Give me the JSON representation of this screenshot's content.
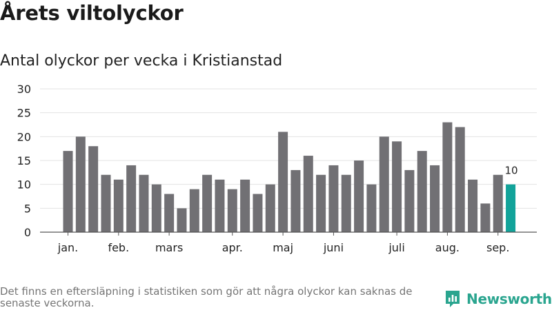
{
  "header": {
    "title": "Årets viltolyckor",
    "subtitle": "Antal olyckor per vecka i Kristianstad"
  },
  "footer": {
    "note": "Det finns en eftersläpning i statistiken som gör att några olyckor kan saknas de senaste veckorna.",
    "brand": "Newsworthy"
  },
  "colors": {
    "bar": "#717074",
    "highlight": "#12a39a",
    "grid": "#e3e3e3",
    "axis": "#555555",
    "brand": "#2aa58f"
  },
  "chart_data": {
    "type": "bar",
    "title": "Antal olyckor per vecka i Kristianstad",
    "xlabel": "",
    "ylabel": "",
    "ylim": [
      0,
      30
    ],
    "yticks": [
      0,
      5,
      10,
      15,
      20,
      25,
      30
    ],
    "grid": true,
    "values": [
      17,
      20,
      18,
      12,
      11,
      14,
      12,
      10,
      8,
      5,
      9,
      12,
      11,
      9,
      11,
      8,
      10,
      21,
      13,
      16,
      12,
      14,
      12,
      15,
      10,
      20,
      19,
      13,
      17,
      14,
      23,
      22,
      11,
      6,
      12,
      10
    ],
    "highlight_index": 35,
    "highlight_label": "10",
    "month_labels": [
      {
        "label": "jan.",
        "bar": 0
      },
      {
        "label": "feb.",
        "bar": 4
      },
      {
        "label": "mars",
        "bar": 8
      },
      {
        "label": "apr.",
        "bar": 13
      },
      {
        "label": "maj",
        "bar": 17
      },
      {
        "label": "juni",
        "bar": 21
      },
      {
        "label": "juli",
        "bar": 26
      },
      {
        "label": "aug.",
        "bar": 30
      },
      {
        "label": "sep.",
        "bar": 34
      }
    ]
  }
}
